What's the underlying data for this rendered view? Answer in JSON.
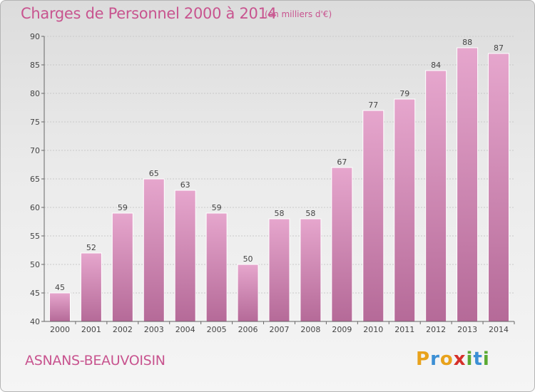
{
  "title": "Charges de Personnel 2000 à 2014",
  "subtitle": "(en milliers d'€)",
  "commune": "ASNANS-BEAUVOISIN",
  "logo": {
    "letters": [
      "P",
      "r",
      "o",
      "x",
      "i",
      "t",
      "i"
    ],
    "colors": [
      "#e8a21c",
      "#3c8fd4",
      "#e8a21c",
      "#d6302a",
      "#5aaa32",
      "#3c8fd4",
      "#5aaa32"
    ]
  },
  "colors": {
    "bar_top": "#e6a6cd",
    "bar_bottom": "#b56a98",
    "accent": "#c8548f"
  },
  "chart_data": {
    "type": "bar",
    "title": "Charges de Personnel 2000 à 2014",
    "subtitle": "(en milliers d'€)",
    "categories": [
      "2000",
      "2001",
      "2002",
      "2003",
      "2004",
      "2005",
      "2006",
      "2007",
      "2008",
      "2009",
      "2010",
      "2011",
      "2012",
      "2013",
      "2014"
    ],
    "values": [
      45,
      52,
      59,
      65,
      63,
      59,
      50,
      58,
      58,
      67,
      77,
      79,
      84,
      88,
      87
    ],
    "ylim": [
      40,
      90
    ],
    "yticks": [
      40,
      45,
      50,
      55,
      60,
      65,
      70,
      75,
      80,
      85,
      90
    ],
    "grid": true,
    "legend": "none"
  }
}
